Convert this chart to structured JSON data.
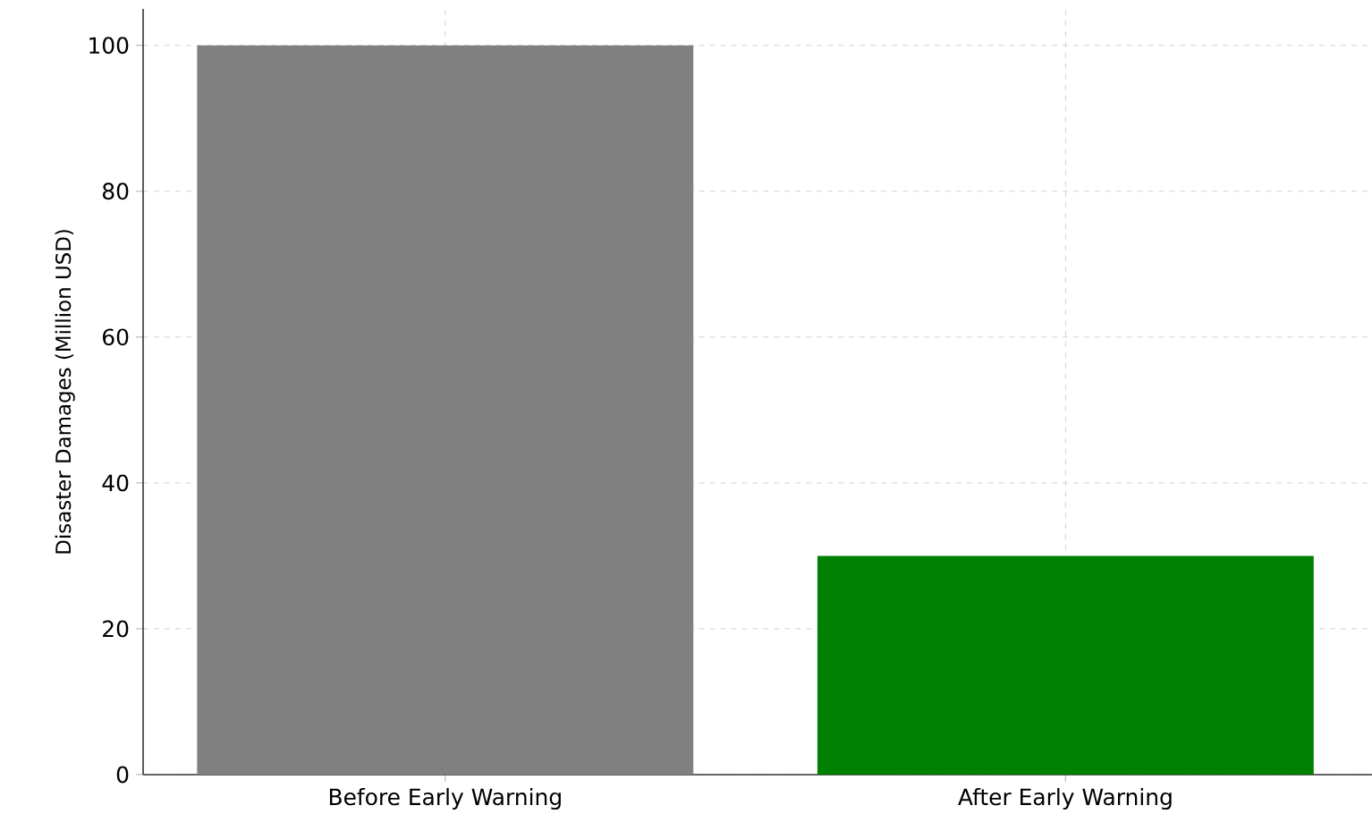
{
  "chart_data": {
    "type": "bar",
    "ylabel": "Disaster Damages (Million USD)",
    "categories": [
      "Before Early Warning",
      "After Early Warning"
    ],
    "values": [
      100,
      30
    ],
    "colors": [
      "#808080",
      "#008000"
    ],
    "ylim": [
      0,
      105
    ],
    "yticks": [
      0,
      20,
      40,
      60,
      80,
      100
    ],
    "grid": true
  }
}
